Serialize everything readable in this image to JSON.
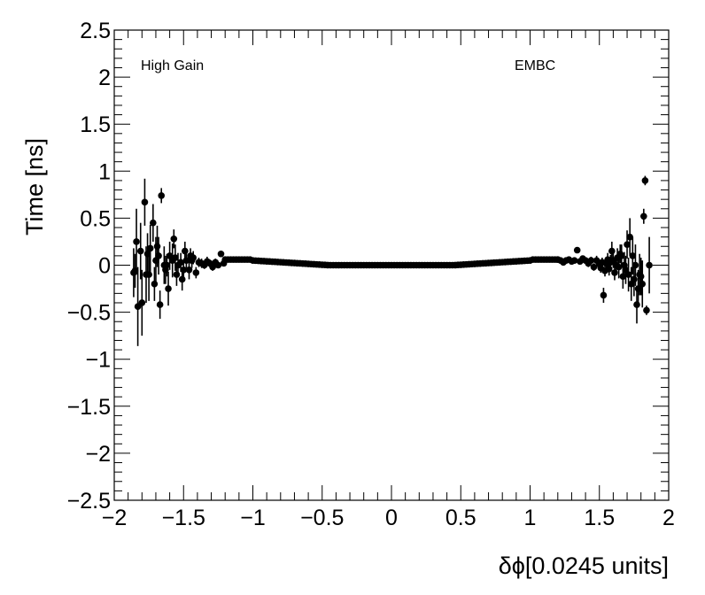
{
  "chart_data": {
    "type": "scatter",
    "title": "",
    "xlabel": "δϕ[0.0245 units]",
    "ylabel": "Time [ns]",
    "xlim": [
      -2,
      2
    ],
    "ylim": [
      -2.5,
      2.5
    ],
    "x_ticks": [
      -2,
      -1.5,
      -1,
      -0.5,
      0,
      0.5,
      1,
      1.5,
      2
    ],
    "x_tick_labels": [
      "−2",
      "−1.5",
      "−1",
      "−0.5",
      "0",
      "0.5",
      "1",
      "1.5",
      "2"
    ],
    "y_ticks": [
      -2.5,
      -2,
      -1.5,
      -1,
      -0.5,
      0,
      0.5,
      1,
      1.5,
      2,
      2.5
    ],
    "y_tick_labels": [
      "−2.5",
      "−2",
      "−1.5",
      "−1",
      "−0.5",
      "0",
      "0.5",
      "1",
      "1.5",
      "2",
      "2.5"
    ],
    "grid": false,
    "annotations": [
      {
        "text": "High Gain",
        "position": "top-left"
      },
      {
        "text": "EMBC",
        "position": "top-right"
      }
    ],
    "marker_color": "#000000",
    "series": [
      {
        "points": [
          [
            -1.86,
            -0.08,
            0.26
          ],
          [
            -1.84,
            0.25,
            0.35
          ],
          [
            -1.83,
            -0.44,
            0.42
          ],
          [
            -1.81,
            0.15,
            0.3
          ],
          [
            -1.8,
            -0.4,
            0.35
          ],
          [
            -1.78,
            0.67,
            0.25
          ],
          [
            -1.77,
            -0.1,
            0.3
          ],
          [
            -1.75,
            -0.1,
            0.28
          ],
          [
            -1.74,
            0.18,
            0.25
          ],
          [
            -1.72,
            0.45,
            0.2
          ],
          [
            -1.7,
            0.05,
            0.25
          ],
          [
            -1.69,
            0.2,
            0.22
          ],
          [
            -1.67,
            -0.42,
            0.15
          ],
          [
            -1.66,
            0.74,
            0.08
          ],
          [
            -1.64,
            0.0,
            0.2
          ],
          [
            -1.63,
            -0.05,
            0.15
          ],
          [
            -1.61,
            -0.25,
            0.18
          ],
          [
            -1.6,
            0.1,
            0.15
          ],
          [
            -1.58,
            0.05,
            0.18
          ],
          [
            -1.57,
            0.28,
            0.1
          ],
          [
            -1.55,
            -0.1,
            0.12
          ],
          [
            -1.54,
            0.0,
            0.13
          ],
          [
            -1.52,
            0.03,
            0.1
          ],
          [
            -1.51,
            -0.15,
            0.12
          ],
          [
            -1.49,
            0.15,
            0.1
          ],
          [
            -1.48,
            0.05,
            0.08
          ],
          [
            -1.46,
            -0.05,
            0.1
          ],
          [
            -1.44,
            0.05,
            0.08
          ],
          [
            -1.43,
            0.08,
            0.07
          ],
          [
            -1.41,
            -0.08,
            0.06
          ],
          [
            -1.39,
            0.03,
            0.05
          ],
          [
            -1.37,
            0.02,
            0.05
          ],
          [
            -1.35,
            0.0,
            0.04
          ],
          [
            -1.33,
            0.04,
            0.05
          ],
          [
            -1.31,
            0.02,
            0.04
          ],
          [
            -1.29,
            -0.02,
            0.04
          ],
          [
            -1.27,
            0.03,
            0.04
          ],
          [
            -1.25,
            0.0,
            0.03
          ],
          [
            -1.23,
            0.12,
            0.03
          ],
          [
            -1.21,
            0.02,
            0.03
          ],
          [
            -1.85,
            -0.06,
            0.18
          ],
          [
            -1.76,
            0.12,
            0.22
          ],
          [
            -1.71,
            -0.2,
            0.18
          ],
          [
            -1.68,
            0.1,
            0.2
          ],
          [
            -1.62,
            0.0,
            0.12
          ],
          [
            -1.56,
            0.08,
            0.14
          ],
          [
            -1.5,
            -0.05,
            0.1
          ],
          [
            -1.45,
            0.1,
            0.08
          ],
          [
            1.86,
            0.0,
            0.3
          ],
          [
            1.84,
            -0.48,
            0.05
          ],
          [
            1.83,
            0.9,
            0.05
          ],
          [
            1.82,
            0.52,
            0.08
          ],
          [
            1.81,
            -0.2,
            0.25
          ],
          [
            1.8,
            -0.12,
            0.2
          ],
          [
            1.79,
            -0.1,
            0.22
          ],
          [
            1.78,
            -0.25,
            0.2
          ],
          [
            1.77,
            -0.42,
            0.2
          ],
          [
            1.76,
            0.0,
            0.22
          ],
          [
            1.75,
            -0.15,
            0.18
          ],
          [
            1.74,
            0.1,
            0.2
          ],
          [
            1.73,
            -0.2,
            0.18
          ],
          [
            1.72,
            0.3,
            0.2
          ],
          [
            1.71,
            -0.1,
            0.18
          ],
          [
            1.7,
            0.22,
            0.15
          ],
          [
            1.69,
            -0.05,
            0.15
          ],
          [
            1.68,
            0.0,
            0.14
          ],
          [
            1.67,
            -0.12,
            0.13
          ],
          [
            1.66,
            0.1,
            0.12
          ],
          [
            1.65,
            0.12,
            0.1
          ],
          [
            1.64,
            -0.02,
            0.12
          ],
          [
            1.63,
            0.08,
            0.1
          ],
          [
            1.62,
            0.0,
            0.1
          ],
          [
            1.61,
            -0.08,
            0.08
          ],
          [
            1.6,
            0.05,
            0.08
          ],
          [
            1.59,
            0.15,
            0.1
          ],
          [
            1.58,
            0.03,
            0.08
          ],
          [
            1.57,
            -0.04,
            0.07
          ],
          [
            1.56,
            0.06,
            0.07
          ],
          [
            1.55,
            0.02,
            0.06
          ],
          [
            1.54,
            -0.06,
            0.06
          ],
          [
            1.53,
            -0.32,
            0.08
          ],
          [
            1.52,
            0.03,
            0.05
          ],
          [
            1.51,
            -0.03,
            0.05
          ],
          [
            1.5,
            0.01,
            0.05
          ],
          [
            1.48,
            0.05,
            0.05
          ],
          [
            1.46,
            -0.02,
            0.04
          ],
          [
            1.44,
            0.05,
            0.04
          ],
          [
            1.42,
            0.02,
            0.04
          ],
          [
            1.4,
            0.05,
            0.03
          ],
          [
            1.38,
            0.07,
            0.03
          ],
          [
            1.36,
            0.04,
            0.03
          ],
          [
            1.34,
            0.16,
            0.03
          ],
          [
            1.32,
            0.05,
            0.03
          ],
          [
            1.3,
            0.04,
            0.03
          ],
          [
            1.28,
            0.06,
            0.03
          ],
          [
            1.26,
            0.05,
            0.02
          ],
          [
            1.24,
            0.03,
            0.02
          ],
          [
            1.22,
            0.05,
            0.02
          ],
          [
            1.2,
            0.06,
            0.02
          ]
        ]
      }
    ],
    "central_band": {
      "x_from": -1.2,
      "x_to": 1.2,
      "x_step": 0.02,
      "description_free": true
    }
  }
}
